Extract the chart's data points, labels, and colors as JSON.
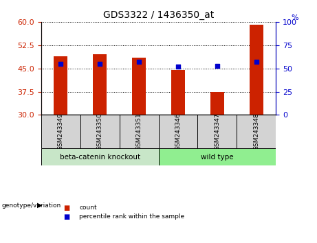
{
  "title": "GDS3322 / 1436350_at",
  "samples": [
    "GSM243349",
    "GSM243350",
    "GSM243351",
    "GSM243346",
    "GSM243347",
    "GSM243348"
  ],
  "count_values": [
    49.0,
    49.5,
    48.5,
    44.5,
    37.5,
    59.0
  ],
  "percentile_pct": [
    55,
    55,
    57,
    52,
    53,
    57
  ],
  "ylim_left": [
    30,
    60
  ],
  "ylim_right": [
    0,
    100
  ],
  "yticks_left": [
    30,
    37.5,
    45,
    52.5,
    60
  ],
  "yticks_right": [
    0,
    25,
    50,
    75,
    100
  ],
  "bar_color": "#cc2200",
  "dot_color": "#0000cc",
  "bar_width": 0.35,
  "left_tick_color": "#cc2200",
  "right_tick_color": "#0000cc",
  "group_label_left": "beta-catenin knockout",
  "group_label_right": "wild type",
  "group_bg_left": "#c8e6c8",
  "group_bg_right": "#90EE90",
  "sample_bg_color": "#d3d3d3",
  "legend_count_color": "#cc2200",
  "legend_pct_color": "#0000cc"
}
